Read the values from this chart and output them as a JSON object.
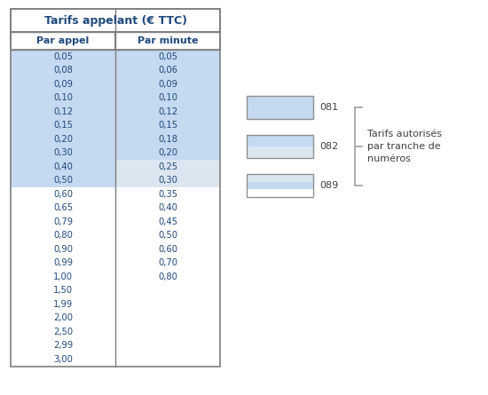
{
  "title": "Tarifs appelant (€ TTC)",
  "col1_header": "Par appel",
  "col2_header": "Par minute",
  "col1_values": [
    "0,05",
    "0,08",
    "0,09",
    "0,10",
    "0,12",
    "0,15",
    "0,20",
    "0,30",
    "0,40",
    "0,50",
    "0,60",
    "0,65",
    "0,79",
    "0,80",
    "0,90",
    "0,99",
    "1,00",
    "1,50",
    "1,99",
    "2,00",
    "2,50",
    "2,99",
    "3,00"
  ],
  "col2_values": [
    "0,05",
    "0,06",
    "0,09",
    "0,10",
    "0,12",
    "0,15",
    "0,18",
    "0,20",
    "0,25",
    "0,30",
    "0,35",
    "0,40",
    "0,45",
    "0,50",
    "0,60",
    "0,70",
    "0,80",
    "",
    "",
    "",
    "",
    "",
    ""
  ],
  "col1_bg": [
    0,
    1,
    2,
    3,
    4,
    5,
    6,
    7,
    8,
    9
  ],
  "col2_bg_dark": [
    0,
    1,
    2,
    3,
    4,
    5,
    6,
    7
  ],
  "col2_bg_light": [
    8,
    9
  ],
  "light_blue": "#c5d9f1",
  "lighter_blue": "#dce6f1",
  "white": "#ffffff",
  "border_color": "#7f7f7f",
  "text_color": "#1f497d",
  "legend_title_fixed": "Tarifs autorisés\npar tranche de\nnuméros"
}
